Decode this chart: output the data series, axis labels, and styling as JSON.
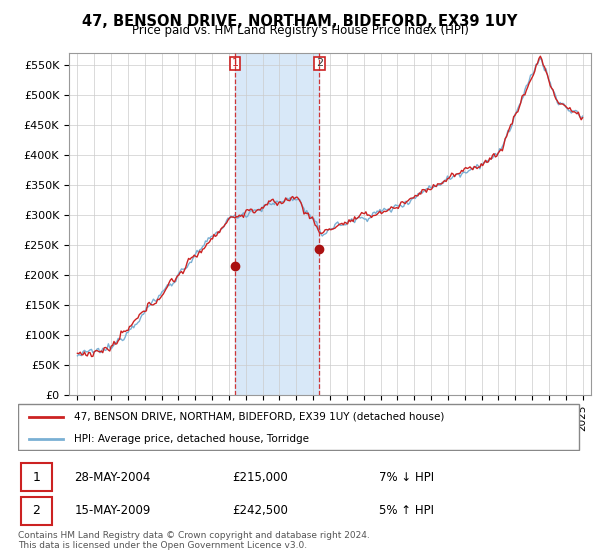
{
  "title": "47, BENSON DRIVE, NORTHAM, BIDEFORD, EX39 1UY",
  "subtitle": "Price paid vs. HM Land Registry's House Price Index (HPI)",
  "ylabel_ticks": [
    "£0",
    "£50K",
    "£100K",
    "£150K",
    "£200K",
    "£250K",
    "£300K",
    "£350K",
    "£400K",
    "£450K",
    "£500K",
    "£550K"
  ],
  "ytick_values": [
    0,
    50000,
    100000,
    150000,
    200000,
    250000,
    300000,
    350000,
    400000,
    450000,
    500000,
    550000
  ],
  "ylim": [
    0,
    570000
  ],
  "sale1_date": "28-MAY-2004",
  "sale1_price": 215000,
  "sale1_label": "7% ↓ HPI",
  "sale2_date": "15-MAY-2009",
  "sale2_price": 242500,
  "sale2_label": "5% ↑ HPI",
  "sale1_x": 2004.37,
  "sale2_x": 2009.37,
  "legend_line1": "47, BENSON DRIVE, NORTHAM, BIDEFORD, EX39 1UY (detached house)",
  "legend_line2": "HPI: Average price, detached house, Torridge",
  "footer1": "Contains HM Land Registry data © Crown copyright and database right 2024.",
  "footer2": "This data is licensed under the Open Government Licence v3.0.",
  "hpi_color": "#7ab0d4",
  "price_color": "#cc2222",
  "marker_color": "#aa1111",
  "vline_color": "#cc2222",
  "shade_color": "#d8e8f8",
  "background_color": "#ffffff",
  "grid_color": "#cccccc",
  "xlim_left": 1994.5,
  "xlim_right": 2025.5
}
